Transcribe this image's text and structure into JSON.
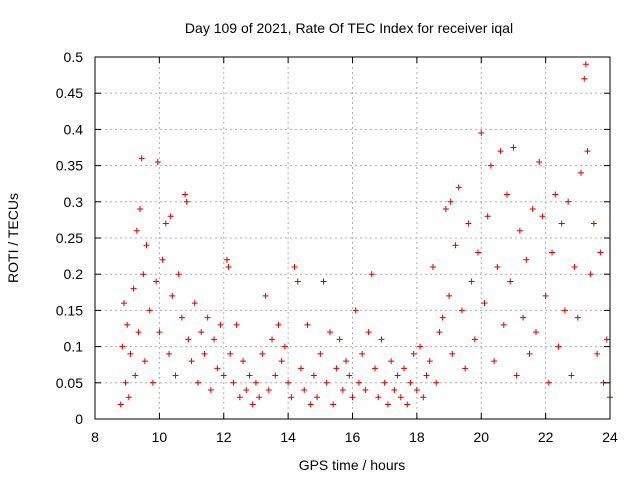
{
  "chart_data": {
    "type": "scatter",
    "title": "Day 109 of 2021, Rate Of TEC Index for receiver iqal",
    "xlabel": "GPS time / hours",
    "ylabel": "ROTI / TECUs",
    "xlim": [
      8,
      24
    ],
    "ylim": [
      0,
      0.5
    ],
    "xticks": [
      "8",
      "10",
      "12",
      "14",
      "16",
      "18",
      "20",
      "22",
      "24"
    ],
    "yticks": [
      "0",
      "0.05",
      "0.1",
      "0.15",
      "0.2",
      "0.25",
      "0.3",
      "0.35",
      "0.4",
      "0.45",
      "0.5"
    ],
    "grid": true,
    "marker": "+",
    "color": "#e00000",
    "series": [
      {
        "points": [
          [
            8.8,
            0.02
          ],
          [
            8.85,
            0.1
          ],
          [
            8.9,
            0.16
          ],
          [
            8.95,
            0.05
          ],
          [
            9.0,
            0.13
          ],
          [
            9.05,
            0.03
          ],
          [
            9.1,
            0.09
          ],
          [
            9.2,
            0.18
          ],
          [
            9.25,
            0.06
          ],
          [
            9.3,
            0.26
          ],
          [
            9.35,
            0.12
          ],
          [
            9.4,
            0.29
          ],
          [
            9.45,
            0.36
          ],
          [
            9.5,
            0.2
          ],
          [
            9.55,
            0.08
          ],
          [
            9.6,
            0.24
          ],
          [
            9.7,
            0.15
          ],
          [
            9.8,
            0.05
          ],
          [
            9.9,
            0.19
          ],
          [
            9.95,
            0.355
          ],
          [
            10.0,
            0.12
          ],
          [
            10.1,
            0.22
          ],
          [
            10.2,
            0.27
          ],
          [
            10.3,
            0.09
          ],
          [
            10.35,
            0.28
          ],
          [
            10.4,
            0.17
          ],
          [
            10.5,
            0.06
          ],
          [
            10.6,
            0.2
          ],
          [
            10.7,
            0.14
          ],
          [
            10.8,
            0.31
          ],
          [
            10.85,
            0.3
          ],
          [
            10.9,
            0.11
          ],
          [
            11.0,
            0.08
          ],
          [
            11.1,
            0.16
          ],
          [
            11.2,
            0.05
          ],
          [
            11.3,
            0.12
          ],
          [
            11.4,
            0.09
          ],
          [
            11.5,
            0.14
          ],
          [
            11.6,
            0.04
          ],
          [
            11.7,
            0.11
          ],
          [
            11.8,
            0.07
          ],
          [
            11.9,
            0.13
          ],
          [
            12.0,
            0.06
          ],
          [
            12.1,
            0.22
          ],
          [
            12.15,
            0.21
          ],
          [
            12.2,
            0.09
          ],
          [
            12.3,
            0.05
          ],
          [
            12.4,
            0.13
          ],
          [
            12.5,
            0.03
          ],
          [
            12.6,
            0.08
          ],
          [
            12.7,
            0.04
          ],
          [
            12.8,
            0.06
          ],
          [
            12.9,
            0.02
          ],
          [
            13.0,
            0.05
          ],
          [
            13.1,
            0.03
          ],
          [
            13.2,
            0.09
          ],
          [
            13.3,
            0.17
          ],
          [
            13.4,
            0.04
          ],
          [
            13.5,
            0.11
          ],
          [
            13.6,
            0.06
          ],
          [
            13.7,
            0.13
          ],
          [
            13.8,
            0.08
          ],
          [
            13.9,
            0.1
          ],
          [
            14.0,
            0.05
          ],
          [
            14.1,
            0.03
          ],
          [
            14.2,
            0.21
          ],
          [
            14.3,
            0.19
          ],
          [
            14.4,
            0.07
          ],
          [
            14.5,
            0.04
          ],
          [
            14.6,
            0.13
          ],
          [
            14.7,
            0.02
          ],
          [
            14.8,
            0.06
          ],
          [
            14.9,
            0.03
          ],
          [
            15.0,
            0.09
          ],
          [
            15.1,
            0.19
          ],
          [
            15.2,
            0.05
          ],
          [
            15.3,
            0.12
          ],
          [
            15.4,
            0.02
          ],
          [
            15.5,
            0.07
          ],
          [
            15.6,
            0.11
          ],
          [
            15.7,
            0.04
          ],
          [
            15.8,
            0.08
          ],
          [
            15.9,
            0.06
          ],
          [
            16.0,
            0.03
          ],
          [
            16.1,
            0.15
          ],
          [
            16.2,
            0.05
          ],
          [
            16.3,
            0.09
          ],
          [
            16.4,
            0.04
          ],
          [
            16.5,
            0.12
          ],
          [
            16.6,
            0.2
          ],
          [
            16.7,
            0.07
          ],
          [
            16.8,
            0.03
          ],
          [
            16.9,
            0.11
          ],
          [
            17.0,
            0.05
          ],
          [
            17.1,
            0.02
          ],
          [
            17.2,
            0.08
          ],
          [
            17.3,
            0.04
          ],
          [
            17.4,
            0.06
          ],
          [
            17.5,
            0.03
          ],
          [
            17.6,
            0.07
          ],
          [
            17.7,
            0.02
          ],
          [
            17.8,
            0.05
          ],
          [
            17.9,
            0.09
          ],
          [
            18.0,
            0.04
          ],
          [
            18.1,
            0.1
          ],
          [
            18.2,
            0.03
          ],
          [
            18.3,
            0.06
          ],
          [
            18.4,
            0.08
          ],
          [
            18.5,
            0.21
          ],
          [
            18.6,
            0.05
          ],
          [
            18.7,
            0.12
          ],
          [
            18.8,
            0.14
          ],
          [
            18.9,
            0.29
          ],
          [
            19.0,
            0.17
          ],
          [
            19.05,
            0.3
          ],
          [
            19.1,
            0.09
          ],
          [
            19.2,
            0.24
          ],
          [
            19.3,
            0.32
          ],
          [
            19.4,
            0.15
          ],
          [
            19.5,
            0.07
          ],
          [
            19.6,
            0.27
          ],
          [
            19.7,
            0.19
          ],
          [
            19.8,
            0.11
          ],
          [
            19.9,
            0.23
          ],
          [
            20.0,
            0.395
          ],
          [
            20.1,
            0.16
          ],
          [
            20.2,
            0.28
          ],
          [
            20.3,
            0.35
          ],
          [
            20.4,
            0.08
          ],
          [
            20.5,
            0.21
          ],
          [
            20.6,
            0.37
          ],
          [
            20.7,
            0.13
          ],
          [
            20.8,
            0.31
          ],
          [
            20.9,
            0.19
          ],
          [
            21.0,
            0.375
          ],
          [
            21.1,
            0.06
          ],
          [
            21.2,
            0.26
          ],
          [
            21.3,
            0.14
          ],
          [
            21.4,
            0.22
          ],
          [
            21.5,
            0.09
          ],
          [
            21.6,
            0.29
          ],
          [
            21.7,
            0.12
          ],
          [
            21.8,
            0.355
          ],
          [
            21.9,
            0.28
          ],
          [
            22.0,
            0.17
          ],
          [
            22.1,
            0.05
          ],
          [
            22.2,
            0.23
          ],
          [
            22.3,
            0.31
          ],
          [
            22.4,
            0.1
          ],
          [
            22.5,
            0.27
          ],
          [
            22.6,
            0.15
          ],
          [
            22.7,
            0.3
          ],
          [
            22.8,
            0.06
          ],
          [
            22.9,
            0.21
          ],
          [
            23.0,
            0.14
          ],
          [
            23.1,
            0.34
          ],
          [
            23.2,
            0.47
          ],
          [
            23.25,
            0.49
          ],
          [
            23.3,
            0.37
          ],
          [
            23.4,
            0.2
          ],
          [
            23.5,
            0.27
          ],
          [
            23.6,
            0.09
          ],
          [
            23.7,
            0.23
          ],
          [
            23.8,
            0.05
          ],
          [
            23.9,
            0.11
          ],
          [
            24.0,
            0.03
          ]
        ]
      }
    ]
  }
}
